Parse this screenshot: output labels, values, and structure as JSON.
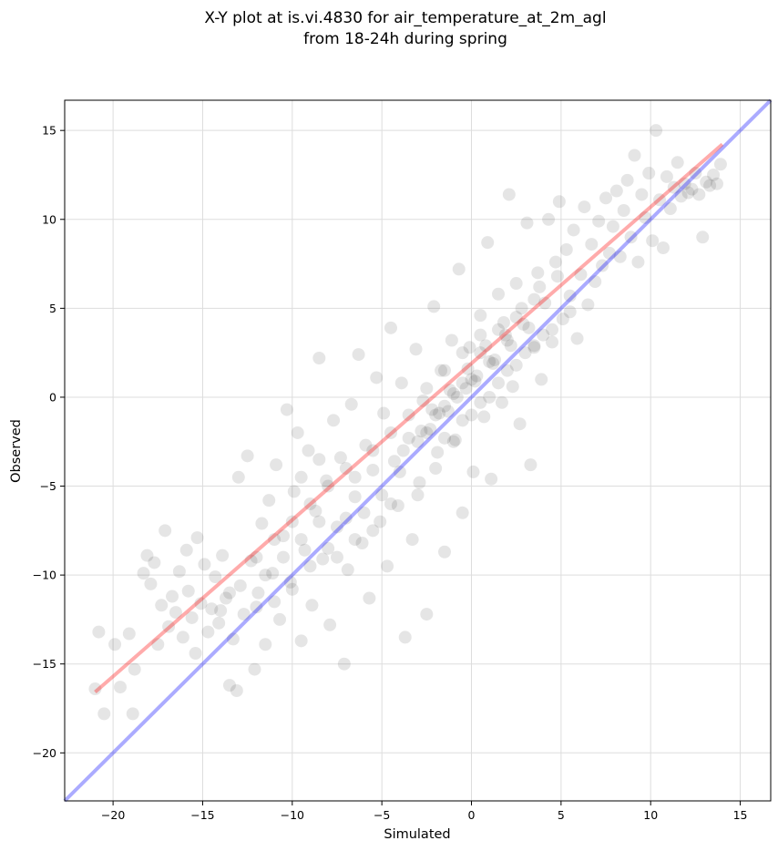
{
  "chart_data": {
    "type": "scatter",
    "title": "X-Y plot at is.vi.4830 for air_temperature_at_2m_agl",
    "subtitle": "from 18-24h during spring",
    "xlabel": "Simulated",
    "ylabel": "Observed",
    "xlim": [
      -22.7,
      16.7
    ],
    "ylim": [
      -22.7,
      16.7
    ],
    "xticks": [
      -20,
      -15,
      -10,
      -5,
      0,
      5,
      10,
      15
    ],
    "yticks": [
      -20,
      -15,
      -10,
      -5,
      0,
      5,
      10,
      15
    ],
    "xtick_labels": [
      "−20",
      "−15",
      "−10",
      "−5",
      "0",
      "5",
      "10",
      "15"
    ],
    "ytick_labels": [
      "−20",
      "−15",
      "−10",
      "−5",
      "0",
      "5",
      "10",
      "15"
    ],
    "grid": true,
    "point_color": "#000000",
    "point_opacity": 0.1,
    "fit_line": {
      "color": "#ff0000",
      "slope": 0.88,
      "intercept": 1.9,
      "x_range": [
        -21,
        14
      ]
    },
    "identity_line": {
      "color": "#0000ff",
      "slope": 1,
      "intercept": 0
    },
    "points": [
      [
        -21,
        -16.4
      ],
      [
        -20.8,
        -13.2
      ],
      [
        -20.5,
        -17.8
      ],
      [
        -19.9,
        -13.9
      ],
      [
        -19.6,
        -16.3
      ],
      [
        -19.1,
        -13.3
      ],
      [
        -18.9,
        -17.8
      ],
      [
        -18.8,
        -15.3
      ],
      [
        -18.3,
        -9.9
      ],
      [
        -18.1,
        -8.9
      ],
      [
        -17.9,
        -10.5
      ],
      [
        -17.7,
        -9.3
      ],
      [
        -17.5,
        -13.9
      ],
      [
        -17.3,
        -11.7
      ],
      [
        -17.1,
        -7.5
      ],
      [
        -16.9,
        -12.9
      ],
      [
        -16.7,
        -11.2
      ],
      [
        -16.5,
        -12.1
      ],
      [
        -16.3,
        -9.8
      ],
      [
        -16.1,
        -13.5
      ],
      [
        -15.9,
        -8.6
      ],
      [
        -15.8,
        -10.9
      ],
      [
        -15.6,
        -12.4
      ],
      [
        -15.4,
        -14.4
      ],
      [
        -15.3,
        -7.9
      ],
      [
        -15.1,
        -11.6
      ],
      [
        -14.9,
        -9.4
      ],
      [
        -14.7,
        -13.2
      ],
      [
        -14.5,
        -11.9
      ],
      [
        -14.3,
        -10.1
      ],
      [
        -14.1,
        -12.7
      ],
      [
        -13.9,
        -8.9
      ],
      [
        -13.7,
        -11.3
      ],
      [
        -13.5,
        -16.2
      ],
      [
        -13.3,
        -13.6
      ],
      [
        -13.1,
        -16.5
      ],
      [
        -13.0,
        -4.5
      ],
      [
        -12.9,
        -10.6
      ],
      [
        -12.7,
        -12.2
      ],
      [
        -12.5,
        -3.3
      ],
      [
        -12.3,
        -9.2
      ],
      [
        -12.1,
        -15.3
      ],
      [
        -11.9,
        -11.0
      ],
      [
        -11.7,
        -7.1
      ],
      [
        -11.5,
        -13.9
      ],
      [
        -11.3,
        -5.8
      ],
      [
        -11.1,
        -9.9
      ],
      [
        -10.9,
        -3.8
      ],
      [
        -10.7,
        -12.5
      ],
      [
        -10.5,
        -7.8
      ],
      [
        -10.3,
        -0.7
      ],
      [
        -10.1,
        -10.4
      ],
      [
        -9.9,
        -5.3
      ],
      [
        -9.7,
        -2.0
      ],
      [
        -9.5,
        -13.7
      ],
      [
        -9.3,
        -8.6
      ],
      [
        -9.1,
        -3.0
      ],
      [
        -8.9,
        -11.7
      ],
      [
        -8.7,
        -6.4
      ],
      [
        -8.5,
        2.2
      ],
      [
        -8.3,
        -9.1
      ],
      [
        -8.1,
        -4.7
      ],
      [
        -7.9,
        -12.8
      ],
      [
        -7.7,
        -1.3
      ],
      [
        -7.5,
        -7.3
      ],
      [
        -7.3,
        -3.4
      ],
      [
        -7.1,
        -15.0
      ],
      [
        -6.9,
        -9.7
      ],
      [
        -6.7,
        -0.4
      ],
      [
        -6.5,
        -5.6
      ],
      [
        -6.3,
        2.4
      ],
      [
        -6.1,
        -8.2
      ],
      [
        -5.9,
        -2.7
      ],
      [
        -5.7,
        -11.3
      ],
      [
        -5.5,
        -4.1
      ],
      [
        -5.3,
        1.1
      ],
      [
        -5.1,
        -7.0
      ],
      [
        -4.9,
        -0.9
      ],
      [
        -4.7,
        -9.5
      ],
      [
        -4.5,
        3.9
      ],
      [
        -4.3,
        -3.6
      ],
      [
        -4.1,
        -6.1
      ],
      [
        -3.9,
        0.8
      ],
      [
        -3.7,
        -13.5
      ],
      [
        -3.5,
        -2.3
      ],
      [
        -3.3,
        -8.0
      ],
      [
        -3.1,
        2.7
      ],
      [
        -2.9,
        -4.8
      ],
      [
        -2.7,
        -0.2
      ],
      [
        -2.5,
        -12.2
      ],
      [
        -2.3,
        -1.8
      ],
      [
        -2.1,
        5.1
      ],
      [
        -1.9,
        -3.1
      ],
      [
        -1.7,
        1.5
      ],
      [
        -1.5,
        -8.7
      ],
      [
        -1.3,
        -0.8
      ],
      [
        -1.1,
        3.2
      ],
      [
        -0.9,
        -2.4
      ],
      [
        -0.7,
        7.2
      ],
      [
        -0.5,
        -6.5
      ],
      [
        -0.3,
        0.5
      ],
      [
        -0.1,
        2.8
      ],
      [
        0.1,
        -4.2
      ],
      [
        0.3,
        1.2
      ],
      [
        0.5,
        4.6
      ],
      [
        0.7,
        -1.1
      ],
      [
        0.9,
        8.7
      ],
      [
        1.1,
        -4.6
      ],
      [
        1.3,
        2.1
      ],
      [
        1.5,
        5.8
      ],
      [
        1.7,
        -0.3
      ],
      [
        1.9,
        3.5
      ],
      [
        2.1,
        11.4
      ],
      [
        2.3,
        0.6
      ],
      [
        2.5,
        6.4
      ],
      [
        2.7,
        -1.5
      ],
      [
        2.9,
        4.1
      ],
      [
        3.1,
        9.8
      ],
      [
        3.3,
        -3.8
      ],
      [
        3.5,
        2.9
      ],
      [
        3.7,
        7.0
      ],
      [
        3.9,
        1.0
      ],
      [
        4.1,
        5.3
      ],
      [
        4.3,
        10.0
      ],
      [
        4.5,
        3.1
      ],
      [
        4.7,
        7.6
      ],
      [
        4.9,
        11.0
      ],
      [
        5.1,
        4.4
      ],
      [
        5.3,
        8.3
      ],
      [
        5.5,
        5.7
      ],
      [
        5.7,
        9.4
      ],
      [
        5.9,
        3.3
      ],
      [
        6.1,
        6.9
      ],
      [
        6.3,
        10.7
      ],
      [
        6.5,
        5.2
      ],
      [
        6.7,
        8.6
      ],
      [
        6.9,
        6.5
      ],
      [
        7.1,
        9.9
      ],
      [
        7.3,
        7.4
      ],
      [
        7.5,
        11.2
      ],
      [
        7.7,
        8.1
      ],
      [
        7.9,
        9.6
      ],
      [
        8.1,
        11.6
      ],
      [
        8.3,
        7.9
      ],
      [
        8.5,
        10.5
      ],
      [
        8.7,
        12.2
      ],
      [
        8.9,
        9.0
      ],
      [
        9.1,
        13.6
      ],
      [
        9.3,
        7.6
      ],
      [
        9.5,
        11.4
      ],
      [
        9.7,
        10.1
      ],
      [
        9.9,
        12.6
      ],
      [
        10.1,
        8.8
      ],
      [
        10.3,
        15.0
      ],
      [
        10.5,
        11.1
      ],
      [
        10.7,
        8.4
      ],
      [
        10.9,
        12.4
      ],
      [
        11.1,
        10.6
      ],
      [
        11.3,
        11.8
      ],
      [
        11.5,
        13.2
      ],
      [
        11.7,
        11.3
      ],
      [
        11.9,
        12.0
      ],
      [
        12.1,
        11.5
      ],
      [
        12.3,
        11.7
      ],
      [
        12.5,
        12.6
      ],
      [
        12.7,
        11.4
      ],
      [
        12.9,
        9.0
      ],
      [
        13.1,
        12.1
      ],
      [
        13.3,
        11.9
      ],
      [
        13.5,
        12.5
      ],
      [
        13.7,
        12.0
      ],
      [
        13.9,
        13.1
      ],
      [
        -6.0,
        -6.5
      ],
      [
        -4.0,
        -4.2
      ],
      [
        -3.0,
        -2.5
      ],
      [
        -2.0,
        -1.0
      ],
      [
        -1.0,
        0.2
      ],
      [
        0.0,
        1.0
      ],
      [
        1.0,
        2.0
      ],
      [
        2.0,
        3.2
      ],
      [
        -5.0,
        -5.5
      ],
      [
        -2.5,
        -2.0
      ],
      [
        -1.5,
        -0.5
      ],
      [
        -0.5,
        0.8
      ],
      [
        0.5,
        2.5
      ],
      [
        1.5,
        3.8
      ],
      [
        2.5,
        4.5
      ],
      [
        3.5,
        5.5
      ],
      [
        -8.0,
        -8.5
      ],
      [
        -7.0,
        -6.8
      ],
      [
        -9.0,
        -9.5
      ],
      [
        -10.0,
        -10.8
      ],
      [
        -11.0,
        -11.5
      ],
      [
        -12.0,
        -11.8
      ],
      [
        -14.0,
        -12.0
      ],
      [
        -13.5,
        -11.0
      ],
      [
        -6.5,
        -4.5
      ],
      [
        -5.5,
        -3.0
      ],
      [
        -4.5,
        -2.0
      ],
      [
        -3.5,
        -1.0
      ],
      [
        -2.5,
        0.5
      ],
      [
        -1.5,
        1.5
      ],
      [
        -0.5,
        2.5
      ],
      [
        0.5,
        3.5
      ],
      [
        -3.0,
        -5.5
      ],
      [
        -2.0,
        -4.0
      ],
      [
        -1.0,
        -2.5
      ],
      [
        0.0,
        -1.0
      ],
      [
        1.0,
        0.0
      ],
      [
        2.0,
        1.5
      ],
      [
        3.0,
        2.5
      ],
      [
        4.0,
        3.5
      ],
      [
        -7.5,
        -9.0
      ],
      [
        -6.5,
        -8.0
      ],
      [
        -5.5,
        -7.5
      ],
      [
        -4.5,
        -6.0
      ],
      [
        -8.5,
        -7.0
      ],
      [
        -9.5,
        -8.0
      ],
      [
        -10.5,
        -9.0
      ],
      [
        -11.5,
        -10.0
      ],
      [
        -2.2,
        -0.7
      ],
      [
        -1.2,
        0.4
      ],
      [
        -0.2,
        1.6
      ],
      [
        0.8,
        2.9
      ],
      [
        1.8,
        4.2
      ],
      [
        2.8,
        5.0
      ],
      [
        3.8,
        6.2
      ],
      [
        4.8,
        6.8
      ],
      [
        -3.8,
        -3.0
      ],
      [
        -2.8,
        -1.9
      ],
      [
        -1.8,
        -0.9
      ],
      [
        -0.8,
        0.0
      ],
      [
        0.2,
        0.9
      ],
      [
        1.2,
        1.9
      ],
      [
        2.2,
        2.9
      ],
      [
        3.2,
        3.9
      ],
      [
        -7.0,
        -4.0
      ],
      [
        -8.0,
        -5.0
      ],
      [
        -9.0,
        -6.0
      ],
      [
        -10.0,
        -7.0
      ],
      [
        -11.0,
        -8.0
      ],
      [
        -12.0,
        -9.0
      ],
      [
        -9.5,
        -4.5
      ],
      [
        -8.5,
        -3.5
      ],
      [
        1.5,
        0.8
      ],
      [
        2.5,
        1.8
      ],
      [
        3.5,
        2.8
      ],
      [
        4.5,
        3.8
      ],
      [
        5.5,
        4.8
      ],
      [
        0.5,
        -0.3
      ],
      [
        -0.5,
        -1.3
      ],
      [
        -1.5,
        -2.3
      ]
    ]
  }
}
